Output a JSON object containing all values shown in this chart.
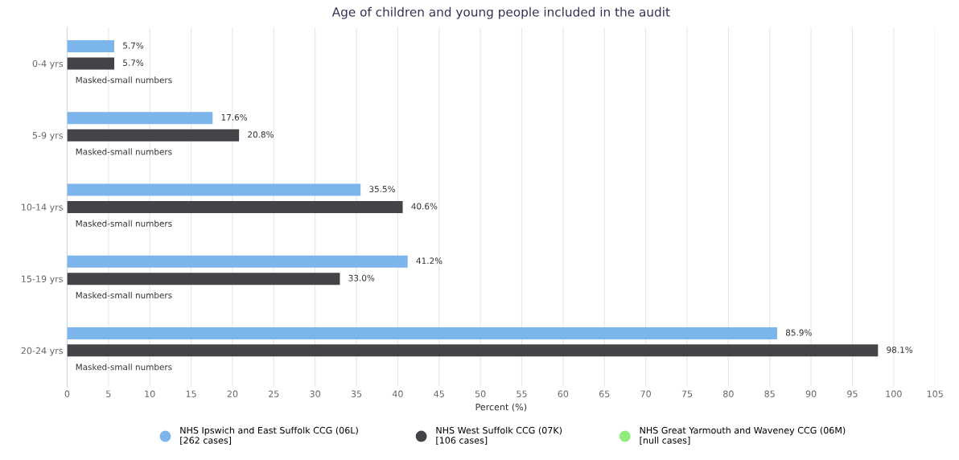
{
  "chart_data": {
    "type": "bar",
    "orientation": "horizontal",
    "title": "Age of children and young people included in the audit",
    "xlabel": "Percent (%)",
    "categories": [
      "0-4 yrs",
      "5-9 yrs",
      "10-14 yrs",
      "15-19 yrs",
      "20-24 yrs"
    ],
    "series": [
      {
        "name": "NHS Ipswich and East Suffolk CCG (06L)\n[262 cases]",
        "color": "#7cb5ec",
        "values": [
          5.7,
          17.6,
          35.5,
          41.2,
          85.9
        ],
        "value_labels": [
          "5.7%",
          "17.6%",
          "35.5%",
          "41.2%",
          "85.9%"
        ]
      },
      {
        "name": "NHS West Suffolk CCG (07K)\n[106 cases]",
        "color": "#434348",
        "values": [
          5.7,
          20.8,
          40.6,
          33.0,
          98.1
        ],
        "value_labels": [
          "5.7%",
          "20.8%",
          "40.6%",
          "33.0%",
          "98.1%"
        ]
      },
      {
        "name": "NHS Great Yarmouth and Waveney CCG (06M)\n[null cases]",
        "color": "#90ed7d",
        "values": [
          null,
          null,
          null,
          null,
          null
        ],
        "value_labels": [
          "Masked-small numbers",
          "Masked-small numbers",
          "Masked-small numbers",
          "Masked-small numbers",
          "Masked-small numbers"
        ]
      }
    ],
    "xlim": [
      0,
      105
    ],
    "xticks": [
      0,
      5,
      10,
      15,
      20,
      25,
      30,
      35,
      40,
      45,
      50,
      55,
      60,
      65,
      70,
      75,
      80,
      85,
      90,
      95,
      100,
      105
    ],
    "grid": "x",
    "legend": "bottom",
    "marker": "circle"
  }
}
